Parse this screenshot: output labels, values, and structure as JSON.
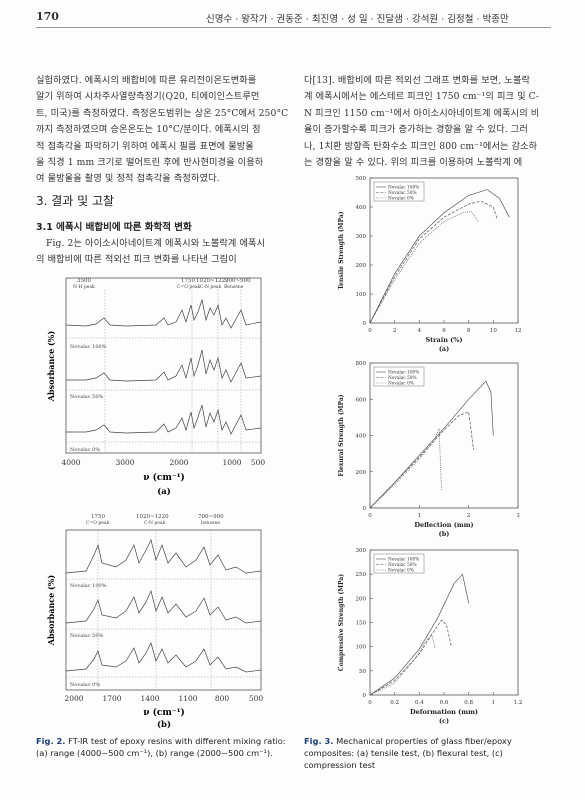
{
  "header": {
    "page_number": "170",
    "authors": "신명수 · 왕작가 · 권동준 · 최진영 · 성 일 · 진달샘 · 강석원 · 김정철 · 박종만"
  },
  "left_col": {
    "para1": [
      "실험하였다. 에폭시의 배합비에 따른 유리전이온도변화를",
      "알기 위하여 시차주사열량측정기(Q20, 티에이인스트루먼",
      "트, 미국)를 측정하였다. 측정온도범위는 상온 25°C에서 250°C",
      "까지 측정하였으며 승온온도는 10°C/분이다. 에폭시의 정",
      "적 접촉각을 파악하기 위하여 에폭시 필름 표면에 물방울",
      "을 직경 1 mm 크기로 떨어트린 후에 반사현미경을 이용하",
      "여 물방울을 촬영 및 정적 접촉각을 측정하였다."
    ],
    "section_title": "3. 결과 및 고찰",
    "subsection_title": "3.1 에폭시 배합비에 따른 화학적 변화",
    "para2": [
      "Fig. 2는 아이소시아네이트계 에폭시와 노볼락계 에폭시",
      "의 배합비에 따른 적외선 피크 변화를 나타낸 그림이"
    ]
  },
  "right_col": {
    "para1": [
      "다[13]. 배합비에 따른 적외선 그래프 변화를 보면, 노볼락",
      "계 에폭시에서는 에스테르 피크인 1750 cm⁻¹의 피크 및 C-",
      "N 피크인 1150 cm⁻¹에서 아이소시아네이트계 에폭시의 비",
      "율이 증가할수록 피크가 증가하는 경향을 알 수 있다. 그러",
      "나, 1치환 방향족 탄화수소 피크인 800 cm⁻¹에서는 감소하",
      "는 경향을 알 수 있다. 위의 피크를 이용하여 노볼락계 에"
    ]
  },
  "ftir_a": {
    "peak_labels": [
      {
        "text": "3500",
        "sub": "N-H peak"
      },
      {
        "text": "1750",
        "sub": "C=O peak"
      },
      {
        "text": "1020~1220",
        "sub": "C-N peak"
      },
      {
        "text": "700~900",
        "sub": "Benzene"
      }
    ],
    "trace_labels": [
      "Novalac 100%",
      "Novalac 50%",
      "Novalac 0%"
    ],
    "ylabel": "Absorbance (%)",
    "xticks": [
      "4000",
      "3000",
      "2000",
      "1000",
      "500"
    ],
    "xlabel": "ν (cm⁻¹)",
    "panel": "(a)"
  },
  "ftir_b": {
    "peak_labels": [
      {
        "text": "1750",
        "sub": "C=O peak"
      },
      {
        "text": "1020~1220",
        "sub": "C-N peak"
      },
      {
        "text": "700~900",
        "sub": "benzene"
      }
    ],
    "trace_labels": [
      "Novalac 100%",
      "Novalac 50%",
      "Novalac 0%"
    ],
    "ylabel": "Absorbance (%)",
    "xticks": [
      "2000",
      "1700",
      "1400",
      "1100",
      "800",
      "500"
    ],
    "xlabel": "ν (cm⁻¹)",
    "panel": "(b)"
  },
  "fig2_caption": {
    "label": "Fig. 2.",
    "text": "FT-IR test of epoxy resins with different mixing ratio: (a) range (4000~500 cm⁻¹), (b) range (2000~500 cm⁻¹)."
  },
  "fig3_caption": {
    "label": "Fig. 3.",
    "text": "Mechanical properties of glass fiber/epoxy composites: (a) tensile test, (b) flexural test, (c) compression test"
  },
  "chart_data": [
    {
      "type": "line",
      "panel": "(a)",
      "xlabel": "Strain (%)",
      "ylabel": "Tensile Strength (MPa)",
      "xlim": [
        0,
        12
      ],
      "ylim": [
        0,
        500
      ],
      "xticks": [
        0,
        2,
        4,
        6,
        8,
        10,
        12
      ],
      "yticks": [
        0,
        100,
        200,
        300,
        400,
        500
      ],
      "legend_position": "top-left",
      "series": [
        {
          "name": "Novalac 100%",
          "x": [
            0,
            2,
            4,
            6,
            8,
            9.5,
            10.5,
            11.3
          ],
          "y": [
            0,
            170,
            300,
            380,
            440,
            460,
            430,
            365
          ]
        },
        {
          "name": "Novalac 50%",
          "x": [
            0,
            2,
            4,
            6,
            8,
            9,
            10,
            10.3
          ],
          "y": [
            0,
            160,
            290,
            365,
            410,
            420,
            400,
            360
          ]
        },
        {
          "name": "Novalac 0%",
          "x": [
            0,
            2,
            4,
            6,
            7.5,
            8.2,
            8.8
          ],
          "y": [
            0,
            150,
            275,
            350,
            380,
            385,
            350
          ]
        }
      ]
    },
    {
      "type": "line",
      "panel": "(b)",
      "xlabel": "Deflection (mm)",
      "ylabel": "Flexural Strength (MPa)",
      "xlim": [
        0,
        3
      ],
      "ylim": [
        0,
        800
      ],
      "xticks": [
        0,
        1,
        2,
        3
      ],
      "yticks": [
        0,
        200,
        400,
        600,
        800
      ],
      "legend_position": "top-left",
      "series": [
        {
          "name": "Novalac 100%",
          "x": [
            0,
            0.5,
            1,
            1.5,
            2,
            2.35,
            2.45,
            2.5
          ],
          "y": [
            0,
            140,
            290,
            440,
            600,
            700,
            640,
            400
          ]
        },
        {
          "name": "Novalac 50%",
          "x": [
            0,
            0.5,
            1,
            1.5,
            1.8,
            2.0,
            2.1
          ],
          "y": [
            0,
            140,
            280,
            430,
            510,
            530,
            320
          ]
        },
        {
          "name": "Novalac 0%",
          "x": [
            0,
            0.5,
            1,
            1.3,
            1.4,
            1.45
          ],
          "y": [
            0,
            130,
            270,
            370,
            440,
            100
          ]
        }
      ]
    },
    {
      "type": "line",
      "panel": "(c)",
      "xlabel": "Deformation (mm)",
      "ylabel": "Compressive Strength (MPa)",
      "xlim": [
        0,
        1.2
      ],
      "ylim": [
        0,
        300
      ],
      "xticks": [
        0,
        0.2,
        0.4,
        0.6,
        0.8,
        1,
        1.2
      ],
      "yticks": [
        0,
        50,
        100,
        150,
        200,
        250,
        300
      ],
      "legend_position": "top-left",
      "series": [
        {
          "name": "Novalac 100%",
          "x": [
            0,
            0.2,
            0.4,
            0.55,
            0.68,
            0.75,
            0.8
          ],
          "y": [
            0,
            35,
            95,
            160,
            230,
            250,
            190
          ]
        },
        {
          "name": "Novalac 50%",
          "x": [
            0,
            0.2,
            0.4,
            0.5,
            0.58,
            0.62,
            0.66
          ],
          "y": [
            0,
            30,
            85,
            125,
            155,
            145,
            100
          ]
        },
        {
          "name": "Novalac 0%",
          "x": [
            0,
            0.2,
            0.35,
            0.45,
            0.5,
            0.53
          ],
          "y": [
            0,
            25,
            70,
            110,
            125,
            95
          ]
        }
      ]
    }
  ]
}
